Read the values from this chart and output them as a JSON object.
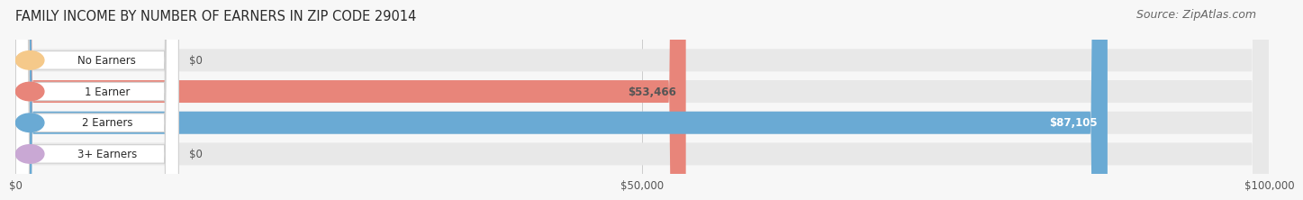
{
  "title": "FAMILY INCOME BY NUMBER OF EARNERS IN ZIP CODE 29014",
  "source": "Source: ZipAtlas.com",
  "categories": [
    "No Earners",
    "1 Earner",
    "2 Earners",
    "3+ Earners"
  ],
  "values": [
    0,
    53466,
    87105,
    0
  ],
  "bar_colors": [
    "#f5c98a",
    "#e8857a",
    "#6aaad4",
    "#c9a8d4"
  ],
  "bar_bg_color": "#e8e8e8",
  "bar_label_colors": [
    "#555555",
    "#555555",
    "#ffffff",
    "#555555"
  ],
  "value_labels": [
    "$0",
    "$53,466",
    "$87,105",
    "$0"
  ],
  "xlim": [
    0,
    100000
  ],
  "xticks": [
    0,
    50000,
    100000
  ],
  "xtick_labels": [
    "$0",
    "$50,000",
    "$100,000"
  ],
  "title_fontsize": 10.5,
  "source_fontsize": 9,
  "label_fontsize": 8.5,
  "value_fontsize": 8.5,
  "tick_fontsize": 8.5,
  "bar_height": 0.72,
  "background_color": "#f7f7f7",
  "fig_width": 14.06,
  "fig_height": 2.33
}
